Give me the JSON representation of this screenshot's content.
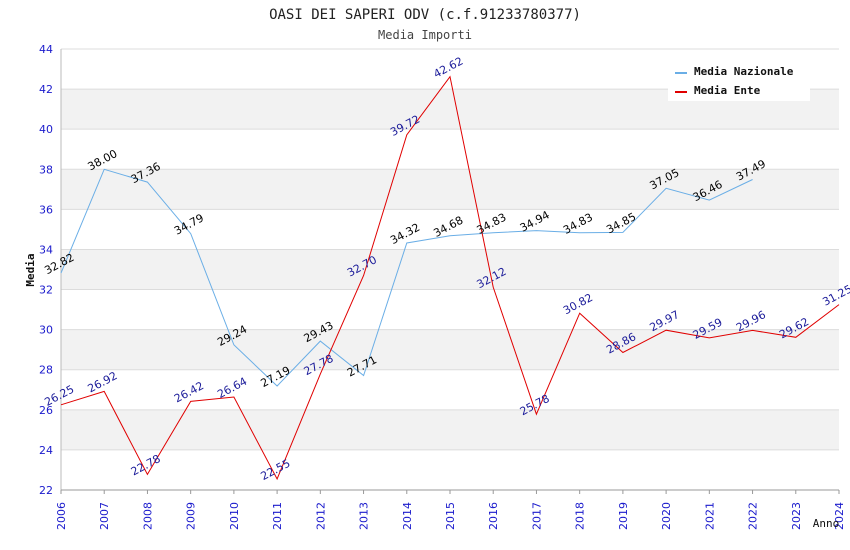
{
  "chart_data": {
    "type": "line",
    "title": "OASI DEI SAPERI ODV (c.f.91233780377)",
    "subtitle": "Media Importi",
    "xlabel": "Anno",
    "ylabel": "Media",
    "ylim": [
      22,
      44
    ],
    "yticks": [
      22,
      24,
      26,
      28,
      30,
      32,
      34,
      36,
      38,
      40,
      42,
      44
    ],
    "x": [
      2006,
      2007,
      2008,
      2009,
      2010,
      2011,
      2012,
      2013,
      2014,
      2015,
      2016,
      2017,
      2018,
      2019,
      2020,
      2021,
      2022,
      2023,
      2024
    ],
    "grid": true,
    "legend_position": "top-right",
    "series": [
      {
        "name": "Media Nazionale",
        "color": "#6aaee6",
        "label_color": "#000000",
        "values": [
          32.82,
          38.0,
          37.36,
          34.79,
          29.24,
          27.19,
          29.43,
          27.71,
          34.32,
          34.68,
          34.83,
          34.94,
          34.83,
          34.85,
          37.05,
          36.46,
          37.49,
          null,
          null
        ],
        "labels": [
          "32.82",
          "38.00",
          "37.36",
          "34.79",
          "29.24",
          "27.19",
          "29.43",
          "27.71",
          "34.32",
          "34.68",
          "34.83",
          "34.94",
          "34.83",
          "34.85",
          "37.05",
          "36.46",
          "37.49",
          null,
          null
        ]
      },
      {
        "name": "Media Ente",
        "color": "#e00000",
        "label_color": "#1a1a99",
        "values": [
          26.25,
          26.92,
          22.78,
          26.42,
          26.64,
          22.55,
          27.78,
          32.7,
          39.72,
          42.62,
          32.12,
          25.78,
          30.82,
          28.86,
          29.97,
          29.59,
          29.96,
          29.62,
          31.25
        ],
        "labels": [
          "26.25",
          "26.92",
          "22.78",
          "26.42",
          "26.64",
          "22.55",
          "27.78",
          "32.70",
          "39.72",
          "42.62",
          "32.12",
          "25.78",
          "30.82",
          "28.86",
          "29.97",
          "29.59",
          "29.96",
          "29.62",
          "31.25"
        ]
      }
    ]
  }
}
